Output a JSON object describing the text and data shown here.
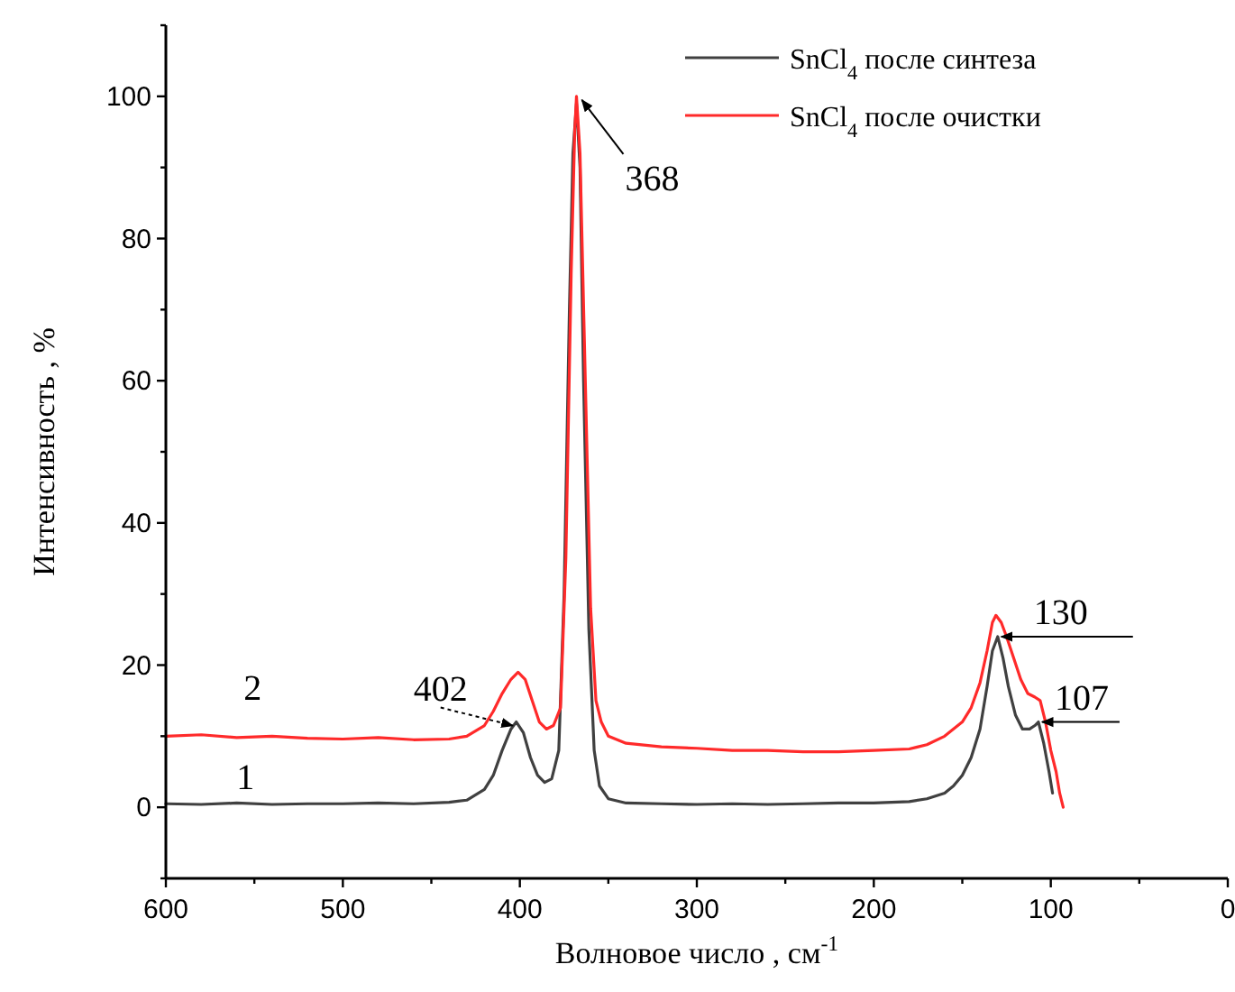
{
  "chart_data": {
    "type": "line",
    "xlabel": "Волновое число , см$^{-1}$",
    "ylabel": "Интенсивность , %",
    "xlim": [
      600,
      0
    ],
    "ylim": [
      -10,
      110
    ],
    "xticks": [
      600,
      {
        "value": 550,
        "label": null
      },
      500,
      {
        "value": 450,
        "label": null
      },
      400,
      {
        "value": 350,
        "label": null
      },
      300,
      {
        "value": 250,
        "label": null
      },
      200,
      {
        "value": 150,
        "label": null
      },
      100,
      {
        "value": 50,
        "label": null
      },
      0
    ],
    "yticks": [
      {
        "value": -10,
        "label": null
      },
      0,
      {
        "value": 10,
        "label": null
      },
      20,
      {
        "value": 30,
        "label": null
      },
      40,
      {
        "value": 50,
        "label": null
      },
      60,
      {
        "value": 70,
        "label": null
      },
      80,
      {
        "value": 90,
        "label": null
      },
      100,
      {
        "value": 110,
        "label": null
      }
    ],
    "grid": false,
    "legend": "top right",
    "marker": "none",
    "line_style": "solid",
    "series": [
      {
        "name": "SnCl$_{4}$ после синтеза",
        "color": "#404040",
        "x": [
          600,
          580,
          560,
          540,
          520,
          500,
          480,
          460,
          440,
          430,
          420,
          415,
          410,
          405,
          402,
          398,
          394,
          390,
          386,
          382,
          378,
          375,
          372,
          370,
          368,
          366,
          364,
          361,
          358,
          355,
          350,
          340,
          320,
          300,
          280,
          260,
          240,
          220,
          200,
          180,
          170,
          160,
          155,
          150,
          145,
          140,
          136,
          133,
          130,
          127,
          124,
          120,
          116,
          112,
          109,
          107,
          104,
          101,
          99
        ],
        "values": [
          0.5,
          0.4,
          0.6,
          0.4,
          0.5,
          0.5,
          0.6,
          0.5,
          0.7,
          1,
          2.5,
          4.5,
          8,
          11,
          12,
          10.5,
          7,
          4.5,
          3.5,
          4,
          8,
          30,
          70,
          92,
          99,
          90,
          60,
          25,
          8,
          3,
          1.2,
          0.6,
          0.5,
          0.4,
          0.5,
          0.4,
          0.5,
          0.6,
          0.6,
          0.8,
          1.2,
          2,
          3,
          4.5,
          7,
          11,
          17,
          22,
          24,
          21,
          17,
          13,
          11,
          11,
          11.5,
          12,
          9,
          5,
          2
        ]
      },
      {
        "name": "SnCl$_{4}$ после очистки",
        "color": "#ff2a2a",
        "x": [
          600,
          580,
          560,
          540,
          520,
          500,
          480,
          460,
          440,
          430,
          420,
          415,
          410,
          405,
          401,
          397,
          393,
          389,
          385,
          381,
          377,
          374,
          371,
          369,
          368,
          366,
          363,
          360,
          357,
          354,
          350,
          340,
          320,
          300,
          280,
          260,
          240,
          220,
          200,
          180,
          170,
          160,
          150,
          145,
          140,
          136,
          133,
          131,
          128,
          125,
          121,
          117,
          113,
          109,
          106,
          103,
          100,
          97,
          95,
          93
        ],
        "values": [
          10,
          10.2,
          9.8,
          10,
          9.7,
          9.6,
          9.8,
          9.5,
          9.6,
          10,
          11.5,
          13.5,
          16,
          18,
          19,
          18,
          15,
          12,
          11,
          11.5,
          14,
          35,
          75,
          95,
          100,
          92,
          60,
          28,
          15,
          12,
          10,
          9,
          8.5,
          8.3,
          8,
          8,
          7.8,
          7.8,
          8,
          8.2,
          8.8,
          10,
          12,
          14,
          17.5,
          22,
          26,
          27,
          26,
          24,
          21,
          18,
          16,
          15.5,
          15,
          12,
          8,
          5,
          2,
          0
        ]
      }
    ],
    "annotations": [
      {
        "text": "368",
        "x": 368,
        "y": 100
      },
      {
        "text": "402",
        "x": 402,
        "y": 12
      },
      {
        "text": "130",
        "x": 130,
        "y": 24
      },
      {
        "text": "107",
        "x": 107,
        "y": 12
      },
      {
        "text": "1",
        "x": 555,
        "y": 0.5
      },
      {
        "text": "2",
        "x": 555,
        "y": 10
      }
    ]
  }
}
